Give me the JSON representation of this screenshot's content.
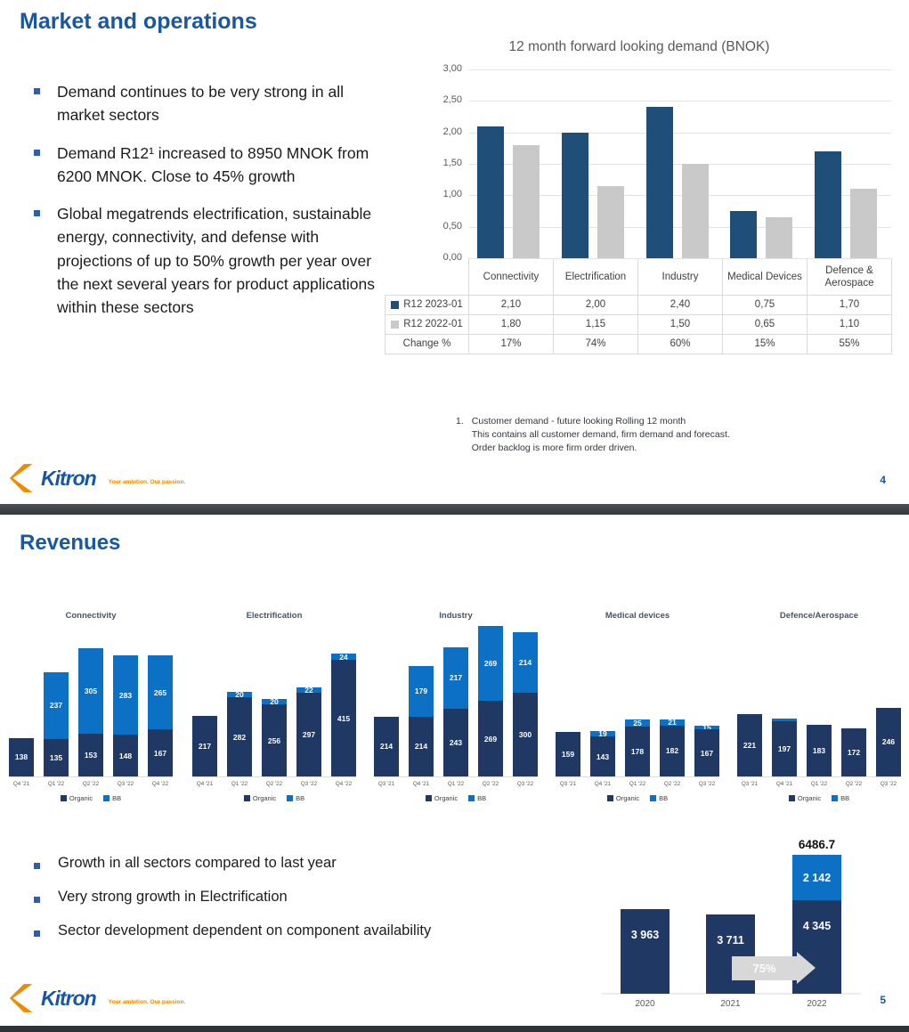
{
  "logo": {
    "name": "Kitron",
    "tagline": "Your ambition. Our passion."
  },
  "colors": {
    "heading_blue": "#1a57a0",
    "body_text": "#1c1c1c",
    "axis_text": "#595959",
    "gridline": "#e2e2e2",
    "table_border": "#dadada",
    "demand_2023": "#1f4e79",
    "demand_2022": "#c9c9c9",
    "organic_navy": "#1f3864",
    "bb_blue": "#0c70c4",
    "arrow_gray": "#d8d8d8",
    "divider_dark": "#3a3f43",
    "logo_orange": "#f08a00",
    "logo_blue": "#1655a8"
  },
  "slide1": {
    "title": "Market and operations",
    "bullets": [
      "Demand continues to be very strong in all market sectors",
      "Demand R12¹ increased to 8950 MNOK from 6200 MNOK. Close to 45% growth",
      "Global megatrends electrification, sustainable energy, connectivity, and defense with projections of up to 50% growth per year over the next several years for product applications within these sectors"
    ],
    "footnote": {
      "number": "1.",
      "lines": [
        "Customer demand - future looking Rolling 12 month",
        "This contains all customer demand, firm demand and forecast.",
        "Order backlog is more firm order driven."
      ]
    },
    "page_number": "4"
  },
  "slide2": {
    "title": "Revenues",
    "bullets": [
      "Growth in all sectors compared to last year",
      "Very strong growth in Electrification",
      "Sector development dependent on component availability"
    ],
    "page_number": "5"
  },
  "chart_data": [
    {
      "id": "demand",
      "type": "bar",
      "title": "12 month forward looking demand (BNOK)",
      "categories": [
        "Connectivity",
        "Electrification",
        "Industry",
        "Medical\nDevices",
        "Defence &\nAerospace"
      ],
      "ylim": [
        0,
        3
      ],
      "y_ticks": [
        "3,00",
        "2,50",
        "2,00",
        "1,50",
        "1,00",
        "0,50",
        "0,00"
      ],
      "grid": true,
      "legend_position": "table-rows",
      "series": [
        {
          "name": "R12 2023-01",
          "color": "#1f4e79",
          "values": [
            2.1,
            2.0,
            2.4,
            0.75,
            1.7
          ],
          "labels": [
            "2,10",
            "2,00",
            "2,40",
            "0,75",
            "1,70"
          ]
        },
        {
          "name": "R12 2022-01",
          "color": "#c9c9c9",
          "values": [
            1.8,
            1.15,
            1.5,
            0.65,
            1.1
          ],
          "labels": [
            "1,80",
            "1,15",
            "1,50",
            "0,65",
            "1,10"
          ]
        }
      ],
      "change_row": {
        "label": "Change %",
        "values": [
          "17%",
          "74%",
          "60%",
          "15%",
          "55%"
        ]
      }
    },
    {
      "id": "connectivity",
      "group": "sector",
      "type": "stacked-bar",
      "title": "Connectivity",
      "categories": [
        "Q4 '21",
        "Q1 '22",
        "Q2 '22",
        "Q3 '22",
        "Q4 '22"
      ],
      "series": [
        {
          "name": "Organic",
          "color": "#1f3864",
          "values": [
            138,
            135,
            153,
            148,
            167
          ],
          "labels": [
            "138",
            "135",
            "153",
            "148",
            "167"
          ]
        },
        {
          "name": "BB",
          "color": "#0c70c4",
          "values": [
            0,
            237,
            305,
            283,
            265
          ],
          "labels": [
            "",
            "237",
            "305",
            "283",
            "265"
          ]
        }
      ]
    },
    {
      "id": "electrification",
      "group": "sector",
      "type": "stacked-bar",
      "title": "Electrification",
      "categories": [
        "Q4 '21",
        "Q1 '22",
        "Q2 '22",
        "Q3 '22",
        "Q4 '22"
      ],
      "series": [
        {
          "name": "Organic",
          "color": "#1f3864",
          "values": [
            217,
            282,
            256,
            297,
            415
          ],
          "labels": [
            "217",
            "282",
            "256",
            "297",
            "415"
          ]
        },
        {
          "name": "BB",
          "color": "#0c70c4",
          "values": [
            0,
            20,
            20,
            22,
            24
          ],
          "labels": [
            "",
            "20",
            "20",
            "22",
            "24"
          ]
        }
      ]
    },
    {
      "id": "industry",
      "group": "sector",
      "type": "stacked-bar",
      "title": "Industry",
      "categories": [
        "Q3 '21",
        "Q4 '21",
        "Q1 '22",
        "Q2 '22",
        "Q3 '22"
      ],
      "series": [
        {
          "name": "Organic",
          "color": "#1f3864",
          "values": [
            214,
            214,
            243,
            269,
            300
          ],
          "labels": [
            "214",
            "214",
            "243",
            "269",
            "300"
          ]
        },
        {
          "name": "BB",
          "color": "#0c70c4",
          "values": [
            0,
            179,
            217,
            269,
            214
          ],
          "labels": [
            "",
            "179",
            "217",
            "269",
            "214"
          ]
        }
      ]
    },
    {
      "id": "medical-devices",
      "group": "sector",
      "type": "stacked-bar",
      "title": "Medical devices",
      "categories": [
        "Q3 '21",
        "Q4 '21",
        "Q1 '22",
        "Q2 '22",
        "Q3 '22"
      ],
      "series": [
        {
          "name": "Organic",
          "color": "#1f3864",
          "values": [
            159,
            143,
            178,
            182,
            167
          ],
          "labels": [
            "159",
            "143",
            "178",
            "182",
            "167"
          ]
        },
        {
          "name": "BB",
          "color": "#0c70c4",
          "values": [
            0,
            19,
            25,
            21,
            15
          ],
          "labels": [
            "",
            "19",
            "25",
            "21",
            "15"
          ]
        }
      ]
    },
    {
      "id": "defence-aerospace",
      "group": "sector",
      "type": "stacked-bar",
      "title": "Defence/Aerospace",
      "categories": [
        "Q3 '21",
        "Q4 '21",
        "Q1 '22",
        "Q2 '22",
        "Q3 '22"
      ],
      "series": [
        {
          "name": "Organic",
          "color": "#1f3864",
          "values": [
            221,
            197,
            183,
            172,
            246
          ],
          "labels": [
            "221",
            "197",
            "183",
            "172",
            "246"
          ]
        },
        {
          "name": "BB",
          "color": "#0c70c4",
          "values": [
            0,
            8,
            0,
            0,
            0
          ],
          "labels": [
            "",
            "",
            "",
            "",
            ""
          ]
        }
      ]
    },
    {
      "id": "annual-revenue",
      "type": "stacked-bar",
      "categories": [
        "2020",
        "2021",
        "2022"
      ],
      "series": [
        {
          "name": "Organic",
          "color": "#1f3864",
          "values": [
            3963,
            3711,
            4345
          ],
          "labels": [
            "3 963",
            "3 711",
            "4 345"
          ]
        },
        {
          "name": "BB",
          "color": "#0c70c4",
          "values": [
            0,
            0,
            2142
          ],
          "labels": [
            "",
            "",
            "2 142"
          ]
        }
      ],
      "total_label": "6486.7",
      "arrow_label": "75%"
    }
  ]
}
